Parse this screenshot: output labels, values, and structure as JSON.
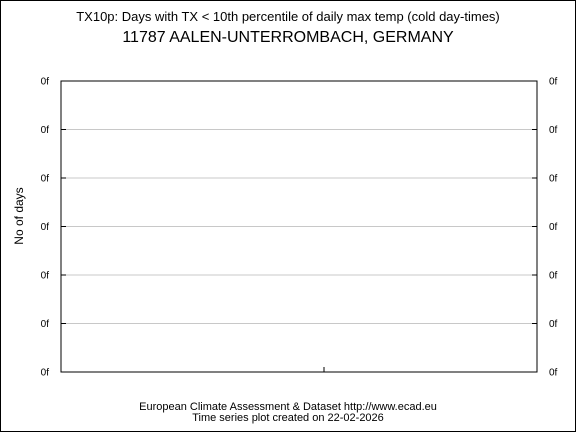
{
  "header": {
    "title": "TX10p: Days with TX < 10th percentile of daily max temp (cold day-times)",
    "subtitle": "11787 AALEN-UNTERROMBACH, GERMANY"
  },
  "chart_data": {
    "type": "line",
    "title": "TX10p: Days with TX < 10th percentile of daily max temp (cold day-times)",
    "subtitle": "11787 AALEN-UNTERROMBACH, GERMANY",
    "xlabel": "",
    "ylabel": "No of days",
    "y_tick_labels": [
      "0f",
      "0f",
      "0f",
      "0f",
      "0f",
      "0f",
      "0f"
    ],
    "series": [],
    "grid": true,
    "colors": {
      "grid": "#c8c8c8",
      "axis": "#000000"
    }
  },
  "footer": {
    "line1": "European Climate Assessment & Dataset  http://www.ecad.eu",
    "line2": "Time series plot created on 22-02-2026"
  }
}
